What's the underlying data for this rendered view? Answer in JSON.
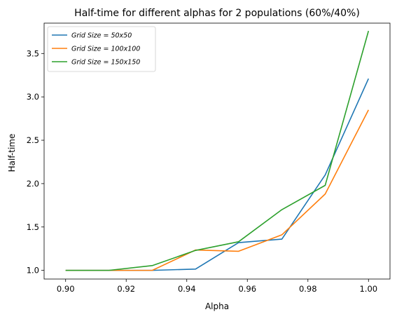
{
  "chart_data": {
    "type": "line",
    "title": "Half-time for different alphas for 2 populations (60%/40%)",
    "xlabel": "Alpha",
    "ylabel": "Half-time",
    "xlim": [
      0.8929,
      1.0071
    ],
    "ylim": [
      0.9,
      3.85
    ],
    "xticks": [
      0.9,
      0.92,
      0.94,
      0.96,
      0.98,
      1.0
    ],
    "xtick_labels": [
      "0.90",
      "0.92",
      "0.94",
      "0.96",
      "0.98",
      "1.00"
    ],
    "yticks": [
      1.0,
      1.5,
      2.0,
      2.5,
      3.0,
      3.5
    ],
    "ytick_labels": [
      "1.0",
      "1.5",
      "2.0",
      "2.5",
      "3.0",
      "3.5"
    ],
    "grid": false,
    "legend_position": "top-left",
    "x": [
      0.9,
      0.9143,
      0.9286,
      0.9429,
      0.9571,
      0.9714,
      0.9857,
      1.0
    ],
    "series": [
      {
        "name": "Grid Size = 50x50",
        "color": "#1f77b4",
        "values": [
          1.0,
          1.0,
          1.0,
          1.015,
          1.32,
          1.36,
          2.1,
          3.21
        ]
      },
      {
        "name": "Grid Size = 100x100",
        "color": "#ff7f0e",
        "values": [
          1.0,
          1.0,
          1.0,
          1.235,
          1.22,
          1.41,
          1.88,
          2.85
        ]
      },
      {
        "name": "Grid Size = 150x150",
        "color": "#2ca02c",
        "values": [
          1.0,
          1.0,
          1.055,
          1.23,
          1.33,
          1.7,
          1.98,
          3.76
        ]
      }
    ]
  }
}
